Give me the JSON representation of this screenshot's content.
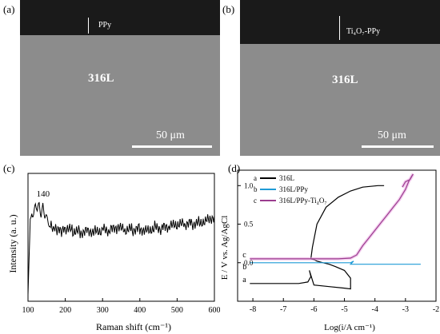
{
  "panels": {
    "a": {
      "label": "(a)",
      "layer_label": "PPy",
      "substrate_label": "316L",
      "scale_label": "50 μm"
    },
    "b": {
      "label": "(b)",
      "layer_label": "Ti₄O₇-PPy",
      "substrate_label": "316L",
      "scale_label": "50 μm"
    },
    "c": {
      "label": "(c)"
    },
    "d": {
      "label": "(d)"
    }
  },
  "colors": {
    "coating": "#1a1a1a",
    "substrate": "#8c8c8c",
    "raman": "#000000",
    "series_a": "#000000",
    "series_b": "#1f9bd6",
    "series_c": "#9b3d8f",
    "series_c_fill": "#e9a3e0"
  },
  "chart_data": [
    {
      "type": "line",
      "title": "",
      "xlabel": "Raman shift (cm⁻¹)",
      "ylabel": "Intensity (a. u.)",
      "xlim": [
        100,
        600
      ],
      "xticks": [
        100,
        200,
        300,
        400,
        500,
        600
      ],
      "yticks_shown": false,
      "annotations": [
        {
          "text": "140",
          "x": 140
        }
      ],
      "series": [
        {
          "x": [
            100,
            103,
            106,
            110,
            115,
            120,
            125,
            130,
            135,
            140,
            145,
            150,
            155,
            160,
            170,
            180,
            190,
            200,
            220,
            240,
            260,
            280,
            300,
            320,
            340,
            360,
            380,
            400,
            420,
            440,
            460,
            480,
            500,
            520,
            540,
            560,
            580,
            600
          ],
          "values": [
            0.05,
            0.35,
            0.62,
            0.72,
            0.7,
            0.74,
            0.68,
            0.75,
            0.7,
            0.78,
            0.66,
            0.62,
            0.6,
            0.58,
            0.56,
            0.55,
            0.54,
            0.56,
            0.55,
            0.54,
            0.56,
            0.55,
            0.56,
            0.55,
            0.57,
            0.55,
            0.56,
            0.57,
            0.56,
            0.58,
            0.57,
            0.58,
            0.59,
            0.6,
            0.61,
            0.62,
            0.64,
            0.67
          ]
        }
      ]
    },
    {
      "type": "line",
      "title": "",
      "xlabel": "Log(i/A cm⁻¹)",
      "ylabel": "E / V vs. Ag/AgCl",
      "xlim": [
        -8.5,
        -2
      ],
      "ylim": [
        -0.5,
        1.2
      ],
      "xticks": [
        -8,
        -7,
        -6,
        -5,
        -4,
        -3,
        -2
      ],
      "yticks": [
        0.0,
        0.5,
        1.0
      ],
      "legend_position": "top-left",
      "series": [
        {
          "name": "316L",
          "key": "a",
          "x": [
            -8.1,
            -7.5,
            -7.0,
            -6.5,
            -6.2,
            -6.1,
            -6.15,
            -6.0,
            -5.5,
            -5.0,
            -4.8,
            -4.8,
            -5.0,
            -5.3,
            -5.5,
            -5.7,
            -5.9,
            -6.0,
            -6.1,
            -6.05,
            -5.9,
            -5.6,
            -5.2,
            -4.8,
            -4.4,
            -3.9,
            -3.7
          ],
          "values": [
            -0.27,
            -0.27,
            -0.27,
            -0.27,
            -0.25,
            -0.18,
            -0.1,
            -0.29,
            -0.31,
            -0.33,
            -0.34,
            -0.2,
            -0.1,
            -0.05,
            -0.02,
            0.0,
            0.02,
            0.04,
            0.05,
            0.2,
            0.5,
            0.72,
            0.85,
            0.93,
            0.98,
            1.0,
            1.0
          ]
        },
        {
          "name": "316L/PPy",
          "key": "b",
          "x": [
            -8.1,
            -7.0,
            -6.0,
            -5.0,
            -4.8,
            -4.7,
            -4.8,
            -4.5,
            -4.0,
            -3.5,
            -3.0,
            -2.5
          ],
          "values": [
            0.0,
            0.0,
            0.0,
            0.0,
            0.0,
            0.02,
            -0.02,
            -0.02,
            -0.02,
            -0.02,
            -0.02,
            -0.02
          ]
        },
        {
          "name": "316L/PPy-Ti₄O₇",
          "key": "c",
          "x": [
            -8.1,
            -7.0,
            -6.0,
            -5.2,
            -4.8,
            -4.6,
            -4.4,
            -4.2,
            -4.0,
            -3.8,
            -3.6,
            -3.4,
            -3.2,
            -3.0,
            -2.9,
            -2.8,
            -2.75,
            -2.85,
            -3.0,
            -3.1
          ],
          "values": [
            0.05,
            0.05,
            0.05,
            0.05,
            0.06,
            0.1,
            0.22,
            0.32,
            0.42,
            0.52,
            0.62,
            0.72,
            0.82,
            0.95,
            1.05,
            1.12,
            1.15,
            1.08,
            1.05,
            0.98
          ]
        }
      ]
    }
  ]
}
